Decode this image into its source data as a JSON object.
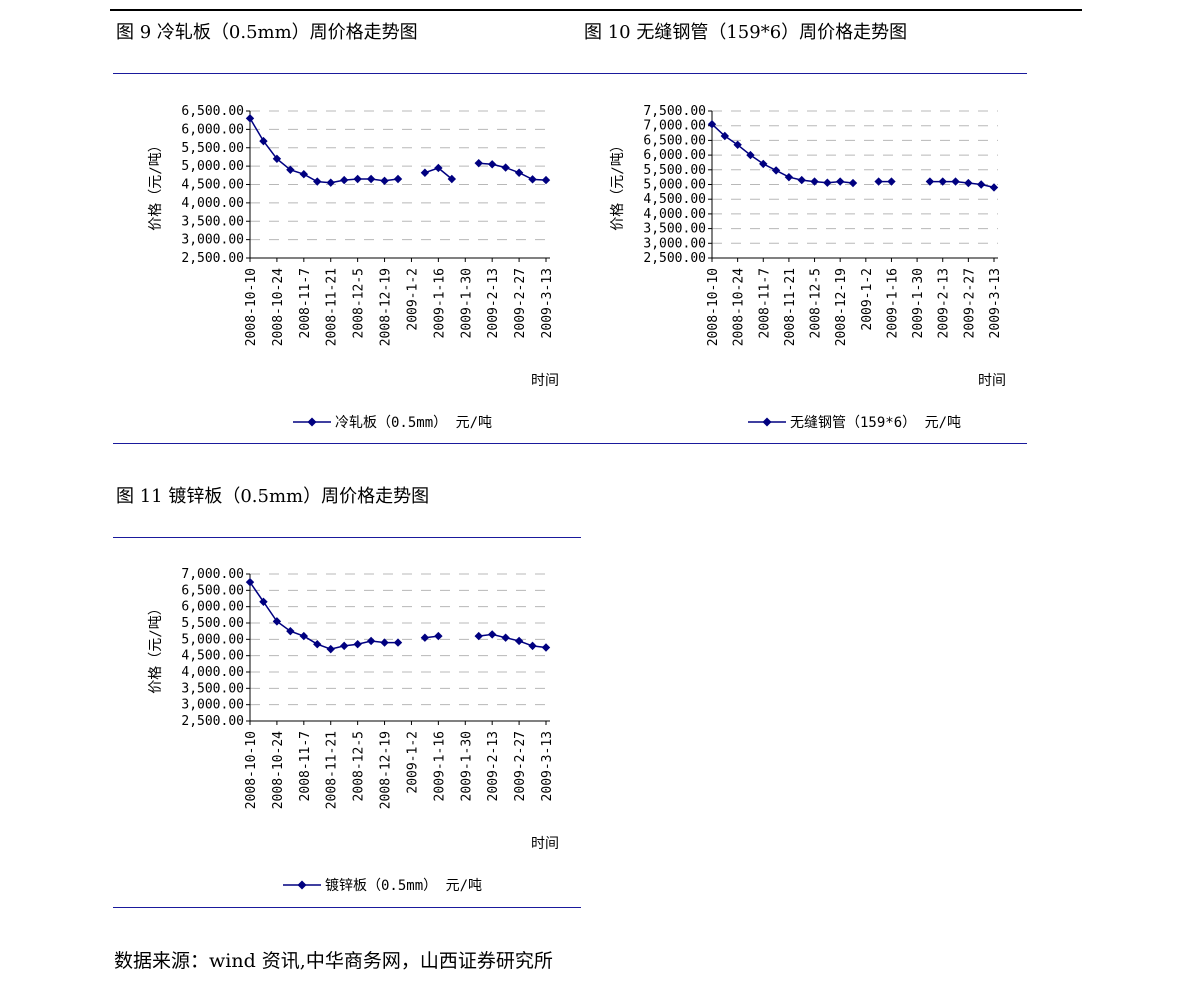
{
  "captions": {
    "fig9": "图 9 冷轧板（0.5mm）周价格走势图",
    "fig10": "图 10 无缝钢管（159*6）周价格走势图",
    "fig11": "图 11 镀锌板（0.5mm）周价格走势图"
  },
  "source": "数据来源：wind 资讯,中华商务网，山西证券研究所",
  "colors": {
    "series": "#000080",
    "rule": "#1a1a9c",
    "grid": "#b8b8b8"
  },
  "chart_data": [
    {
      "type": "line",
      "ylabel": "价格（元/吨）",
      "xlabel": "时间",
      "legend": "冷轧板（0.5mm）  元/吨",
      "legend_position": "bottom",
      "ylim": [
        2500,
        6500
      ],
      "yticks": [
        "6,500.00",
        "6,000.00",
        "5,500.00",
        "5,000.00",
        "4,500.00",
        "4,000.00",
        "3,500.00",
        "3,000.00",
        "2,500.00"
      ],
      "xticks": [
        "2008-10-10",
        "2008-10-24",
        "2008-11-7",
        "2008-11-21",
        "2008-12-5",
        "2008-12-19",
        "2009-1-2",
        "2009-1-16",
        "2009-1-30",
        "2009-2-13",
        "2009-2-27",
        "2009-3-13"
      ],
      "values": [
        6300,
        5680,
        5200,
        4900,
        4780,
        4580,
        4550,
        4620,
        4650,
        4650,
        4600,
        4650,
        null,
        4820,
        4950,
        4650,
        null,
        5080,
        5050,
        4960,
        4820,
        4640,
        4620
      ],
      "grid": "dashed-horizontal"
    },
    {
      "type": "line",
      "ylabel": "价格（元/吨）",
      "xlabel": "时间",
      "legend": "无缝钢管（159*6） 元/吨",
      "legend_position": "bottom",
      "ylim": [
        2500,
        7500
      ],
      "yticks": [
        "7,500.00",
        "7,000.00",
        "6,500.00",
        "6,000.00",
        "5,500.00",
        "5,000.00",
        "4,500.00",
        "4,000.00",
        "3,500.00",
        "3,000.00",
        "2,500.00"
      ],
      "xticks": [
        "2008-10-10",
        "2008-10-24",
        "2008-11-7",
        "2008-11-21",
        "2008-12-5",
        "2008-12-19",
        "2009-1-2",
        "2009-1-16",
        "2009-1-30",
        "2009-2-13",
        "2009-2-27",
        "2009-3-13"
      ],
      "values": [
        7050,
        6650,
        6350,
        6000,
        5700,
        5480,
        5250,
        5150,
        5100,
        5060,
        5100,
        5050,
        null,
        5100,
        5100,
        null,
        null,
        5100,
        5100,
        5100,
        5050,
        5000,
        4900
      ],
      "grid": "dashed-horizontal"
    },
    {
      "type": "line",
      "ylabel": "价格（元/吨）",
      "xlabel": "时间",
      "legend": "镀锌板（0.5mm）    元/吨",
      "legend_position": "bottom",
      "ylim": [
        2500,
        7000
      ],
      "yticks": [
        "7,000.00",
        "6,500.00",
        "6,000.00",
        "5,500.00",
        "5,000.00",
        "4,500.00",
        "4,000.00",
        "3,500.00",
        "3,000.00",
        "2,500.00"
      ],
      "xticks": [
        "2008-10-10",
        "2008-10-24",
        "2008-11-7",
        "2008-11-21",
        "2008-12-5",
        "2008-12-19",
        "2009-1-2",
        "2009-1-16",
        "2009-1-30",
        "2009-2-13",
        "2009-2-27",
        "2009-3-13"
      ],
      "values": [
        6750,
        6150,
        5550,
        5250,
        5100,
        4850,
        4700,
        4800,
        4850,
        4950,
        4900,
        4900,
        null,
        5050,
        5100,
        null,
        null,
        5100,
        5150,
        5050,
        4950,
        4800,
        4750
      ],
      "grid": "dashed-horizontal"
    }
  ]
}
